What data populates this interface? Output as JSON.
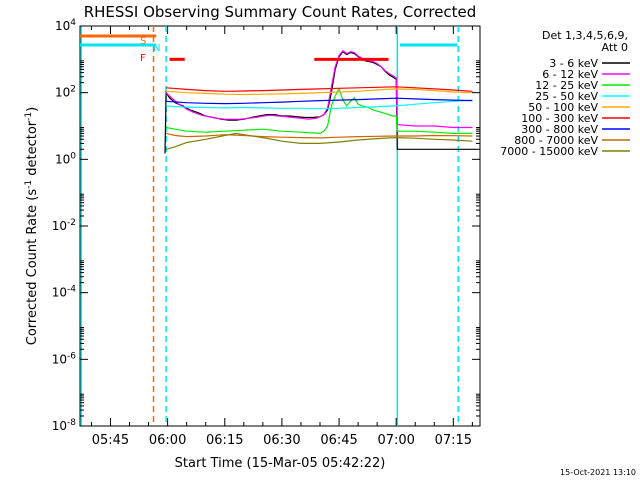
{
  "footer_date": "15-Oct-2021 13:10",
  "chart_data": {
    "type": "line",
    "title": "RHESSI Observing Summary Count Rates, Corrected",
    "xlabel": "Start Time (15-Mar-05 05:42:22)",
    "ylabel": "Corrected Count Rate (s⁻¹ detector⁻¹)",
    "ylabel_parts": {
      "main": "Corrected Count Rate (s",
      "sup1": "-1",
      "mid": " detector",
      "sup2": "-1",
      "end": ")"
    },
    "y_scale": "log",
    "ylim": [
      1e-08,
      10000.0
    ],
    "y_ticks": [
      {
        "value": 10000.0,
        "base": "10",
        "exp": "4"
      },
      {
        "value": 100.0,
        "base": "10",
        "exp": "2"
      },
      {
        "value": 1.0,
        "base": "10",
        "exp": "0"
      },
      {
        "value": 0.01,
        "base": "10",
        "exp": "-2"
      },
      {
        "value": 0.0001,
        "base": "10",
        "exp": "-4"
      },
      {
        "value": 1e-06,
        "base": "10",
        "exp": "-6"
      },
      {
        "value": 1e-08,
        "base": "10",
        "exp": "-8"
      }
    ],
    "x_units": "minutes",
    "x_range": [
      337,
      442
    ],
    "x_ticks": [
      {
        "t": 345,
        "label": "05:45"
      },
      {
        "t": 360,
        "label": "06:00"
      },
      {
        "t": 375,
        "label": "06:15"
      },
      {
        "t": 390,
        "label": "06:30"
      },
      {
        "t": 405,
        "label": "06:45"
      },
      {
        "t": 420,
        "label": "07:00"
      },
      {
        "t": 435,
        "label": "07:15"
      }
    ],
    "legend": {
      "placement": "top-right",
      "header1": "Det 1,3,4,5,6,9,",
      "header2": "Att 0"
    },
    "series": [
      {
        "name": "3 - 6 keV",
        "color": "#000000",
        "points": [
          [
            359.3,
            1.5
          ],
          [
            359.6,
            100
          ],
          [
            360.5,
            70
          ],
          [
            362,
            50
          ],
          [
            364,
            40
          ],
          [
            366,
            30
          ],
          [
            368,
            25
          ],
          [
            370,
            20
          ],
          [
            372,
            18
          ],
          [
            374,
            16
          ],
          [
            376,
            15
          ],
          [
            378,
            15
          ],
          [
            380,
            16
          ],
          [
            382,
            18
          ],
          [
            384,
            20
          ],
          [
            386,
            22
          ],
          [
            388,
            22
          ],
          [
            390,
            20
          ],
          [
            392,
            20
          ],
          [
            394,
            19
          ],
          [
            396,
            18
          ],
          [
            398,
            18
          ],
          [
            400,
            19
          ],
          [
            401,
            22
          ],
          [
            402,
            30
          ],
          [
            403,
            100
          ],
          [
            404,
            500
          ],
          [
            405,
            1200
          ],
          [
            406,
            1700
          ],
          [
            407,
            1400
          ],
          [
            408,
            1600
          ],
          [
            409,
            1500
          ],
          [
            410,
            1200
          ],
          [
            411,
            1000
          ],
          [
            412,
            900
          ],
          [
            413,
            850
          ],
          [
            414,
            800
          ],
          [
            415,
            700
          ],
          [
            416,
            600
          ],
          [
            417,
            450
          ],
          [
            418,
            350
          ],
          [
            419,
            300
          ],
          [
            420,
            250
          ],
          [
            420.3,
            2
          ],
          [
            441,
            2
          ]
        ]
      },
      {
        "name": "6 - 12 keV",
        "color": "#ff00ff",
        "points": [
          [
            359.6,
            100
          ],
          [
            361,
            70
          ],
          [
            363,
            45
          ],
          [
            365,
            32
          ],
          [
            367,
            25
          ],
          [
            369,
            21
          ],
          [
            371,
            19
          ],
          [
            373,
            17
          ],
          [
            375,
            16
          ],
          [
            377,
            16
          ],
          [
            379,
            16
          ],
          [
            381,
            17
          ],
          [
            383,
            18
          ],
          [
            385,
            20
          ],
          [
            387,
            21
          ],
          [
            389,
            20
          ],
          [
            391,
            19
          ],
          [
            393,
            18
          ],
          [
            395,
            17
          ],
          [
            397,
            16
          ],
          [
            399,
            17
          ],
          [
            400,
            19
          ],
          [
            401,
            22
          ],
          [
            402,
            35
          ],
          [
            403,
            150
          ],
          [
            404,
            600
          ],
          [
            405,
            1300
          ],
          [
            406,
            1800
          ],
          [
            407,
            1500
          ],
          [
            408,
            1700
          ],
          [
            409,
            1600
          ],
          [
            410,
            1250
          ],
          [
            411,
            1100
          ],
          [
            412,
            950
          ],
          [
            413,
            900
          ],
          [
            414,
            850
          ],
          [
            415,
            750
          ],
          [
            416,
            600
          ],
          [
            417,
            470
          ],
          [
            418,
            380
          ],
          [
            419,
            330
          ],
          [
            420,
            280
          ],
          [
            420.3,
            11
          ],
          [
            425,
            10
          ],
          [
            430,
            10
          ],
          [
            435,
            9
          ],
          [
            440,
            9
          ]
        ]
      },
      {
        "name": "12 - 25 keV",
        "color": "#00ee00",
        "points": [
          [
            359.6,
            9
          ],
          [
            362,
            8
          ],
          [
            365,
            7
          ],
          [
            370,
            6.5
          ],
          [
            375,
            7
          ],
          [
            380,
            7.5
          ],
          [
            385,
            8
          ],
          [
            390,
            7
          ],
          [
            395,
            6.5
          ],
          [
            400,
            6
          ],
          [
            401,
            7
          ],
          [
            402,
            10
          ],
          [
            403,
            40
          ],
          [
            404,
            80
          ],
          [
            405,
            130
          ],
          [
            406,
            60
          ],
          [
            407,
            40
          ],
          [
            408,
            55
          ],
          [
            409,
            70
          ],
          [
            410,
            45
          ],
          [
            411,
            40
          ],
          [
            412,
            38
          ],
          [
            413,
            35
          ],
          [
            414,
            30
          ],
          [
            415,
            28
          ],
          [
            416,
            26
          ],
          [
            417,
            24
          ],
          [
            418,
            22
          ],
          [
            419,
            20
          ],
          [
            420,
            20
          ],
          [
            420.3,
            7
          ],
          [
            425,
            7
          ],
          [
            430,
            6.5
          ],
          [
            435,
            6
          ],
          [
            440,
            6
          ]
        ]
      },
      {
        "name": "25 - 50 keV",
        "color": "#00ffff",
        "points": [
          [
            359.6,
            40
          ],
          [
            362,
            38
          ],
          [
            365,
            37
          ],
          [
            370,
            36
          ],
          [
            375,
            35
          ],
          [
            380,
            36
          ],
          [
            385,
            35
          ],
          [
            390,
            34
          ],
          [
            395,
            34
          ],
          [
            400,
            33
          ],
          [
            403,
            33
          ],
          [
            405,
            34
          ],
          [
            410,
            36
          ],
          [
            415,
            38
          ],
          [
            420,
            40
          ],
          [
            425,
            45
          ],
          [
            430,
            50
          ],
          [
            435,
            55
          ],
          [
            440,
            60
          ]
        ]
      },
      {
        "name": "50 - 100 keV",
        "color": "#ffaa00",
        "points": [
          [
            359.6,
            110
          ],
          [
            365,
            100
          ],
          [
            370,
            95
          ],
          [
            375,
            90
          ],
          [
            380,
            88
          ],
          [
            385,
            90
          ],
          [
            390,
            92
          ],
          [
            395,
            95
          ],
          [
            400,
            100
          ],
          [
            405,
            105
          ],
          [
            410,
            110
          ],
          [
            415,
            120
          ],
          [
            420,
            130
          ],
          [
            425,
            125
          ],
          [
            430,
            115
          ],
          [
            435,
            105
          ],
          [
            440,
            100
          ]
        ]
      },
      {
        "name": "100 - 300 keV",
        "color": "#ff0000",
        "points": [
          [
            359.6,
            140
          ],
          [
            365,
            125
          ],
          [
            370,
            115
          ],
          [
            375,
            110
          ],
          [
            380,
            112
          ],
          [
            385,
            115
          ],
          [
            390,
            120
          ],
          [
            395,
            125
          ],
          [
            400,
            130
          ],
          [
            405,
            135
          ],
          [
            410,
            140
          ],
          [
            415,
            145
          ],
          [
            420,
            150
          ],
          [
            425,
            140
          ],
          [
            430,
            130
          ],
          [
            435,
            120
          ],
          [
            440,
            110
          ]
        ]
      },
      {
        "name": "300 - 800 keV",
        "color": "#0000ff",
        "points": [
          [
            359.6,
            55
          ],
          [
            365,
            50
          ],
          [
            370,
            48
          ],
          [
            375,
            47
          ],
          [
            380,
            48
          ],
          [
            385,
            50
          ],
          [
            390,
            52
          ],
          [
            395,
            55
          ],
          [
            400,
            58
          ],
          [
            405,
            60
          ],
          [
            410,
            62
          ],
          [
            415,
            65
          ],
          [
            420,
            68
          ],
          [
            425,
            65
          ],
          [
            430,
            62
          ],
          [
            435,
            60
          ],
          [
            440,
            58
          ]
        ]
      },
      {
        "name": "800 - 7000 keV",
        "color": "#cc6600",
        "points": [
          [
            359.6,
            6
          ],
          [
            362,
            5.2
          ],
          [
            365,
            4.8
          ],
          [
            370,
            5
          ],
          [
            375,
            5.5
          ],
          [
            380,
            5.2
          ],
          [
            385,
            4.8
          ],
          [
            390,
            4.6
          ],
          [
            395,
            4.5
          ],
          [
            400,
            4.4
          ],
          [
            405,
            4.6
          ],
          [
            410,
            4.8
          ],
          [
            415,
            4.9
          ],
          [
            420,
            5
          ],
          [
            425,
            5
          ],
          [
            430,
            5.2
          ],
          [
            435,
            5.1
          ],
          [
            440,
            5
          ]
        ]
      },
      {
        "name": "7000 - 15000 keV",
        "color": "#808000",
        "points": [
          [
            359.6,
            2
          ],
          [
            362,
            2.4
          ],
          [
            365,
            3.2
          ],
          [
            370,
            4
          ],
          [
            375,
            5.2
          ],
          [
            378,
            6
          ],
          [
            380,
            5.5
          ],
          [
            385,
            4.5
          ],
          [
            390,
            3.5
          ],
          [
            395,
            3
          ],
          [
            400,
            3
          ],
          [
            405,
            3.3
          ],
          [
            410,
            3.8
          ],
          [
            415,
            4.2
          ],
          [
            420,
            4.5
          ],
          [
            425,
            4.3
          ],
          [
            430,
            4
          ],
          [
            435,
            3.8
          ],
          [
            440,
            3.5
          ]
        ]
      }
    ],
    "flags": [
      {
        "label": "S",
        "color": "#ff6600",
        "t0": 337,
        "t1": 357,
        "y": 5000
      },
      {
        "label": "N",
        "color": "#00e5ee",
        "t0": 337,
        "t1": 357,
        "y": 2700
      },
      {
        "label": "F",
        "color": "#ff0000",
        "t0": 360.5,
        "t1": 364.5,
        "y": 1000
      },
      {
        "label": "",
        "color": "#ff0000",
        "t0": 398.5,
        "t1": 418,
        "y": 1000
      },
      {
        "label": "",
        "color": "#00e5ee",
        "t0": 421,
        "t1": 436,
        "y": 2700
      }
    ],
    "vertical_markers": [
      {
        "t": 337.3,
        "color": "#00e5ee",
        "dash": false
      },
      {
        "t": 356.3,
        "color": "#ff6600",
        "dash": true
      },
      {
        "t": 359.6,
        "color": "#00e5ee",
        "dash": true
      },
      {
        "t": 420.3,
        "color": "#00e5ee",
        "dash": false
      },
      {
        "t": 436.3,
        "color": "#00e5ee",
        "dash": true
      }
    ]
  }
}
